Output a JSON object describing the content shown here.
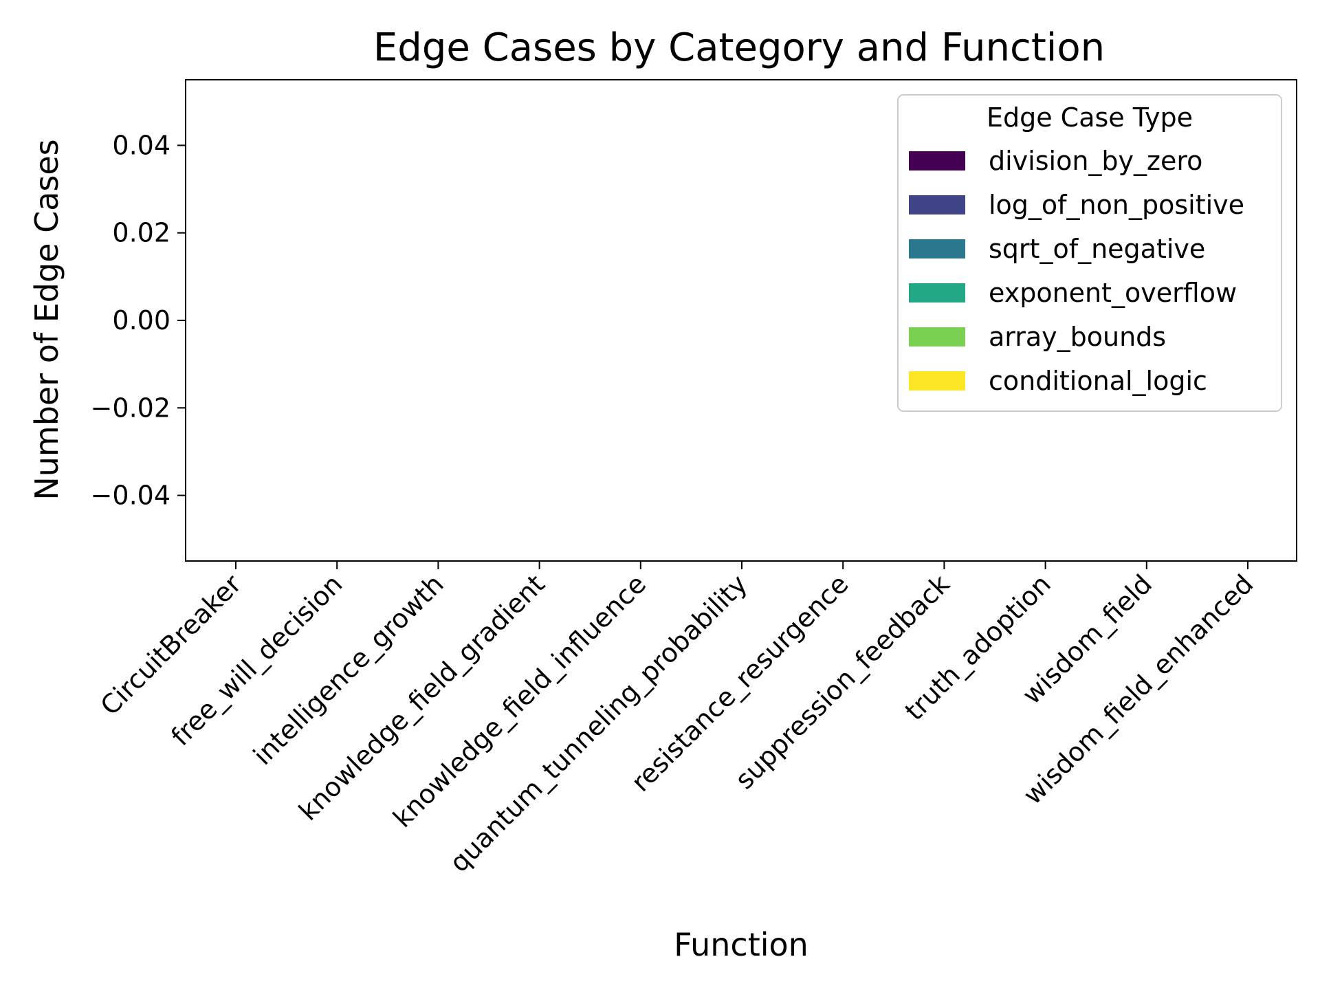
{
  "chart_data": {
    "type": "bar",
    "stacked": true,
    "title": "Edge Cases by Category and Function",
    "xlabel": "Function",
    "ylabel": "Number of Edge Cases",
    "ylim": [
      -0.055,
      0.055
    ],
    "yticks": [
      "0.04",
      "0.02",
      "0.00",
      "−0.02",
      "−0.04"
    ],
    "ytick_values": [
      0.04,
      0.02,
      0.0,
      -0.02,
      -0.04
    ],
    "categories": [
      "CircuitBreaker",
      "free_will_decision",
      "intelligence_growth",
      "knowledge_field_gradient",
      "knowledge_field_influence",
      "quantum_tunneling_probability",
      "resistance_resurgence",
      "suppression_feedback",
      "truth_adoption",
      "wisdom_field",
      "wisdom_field_enhanced"
    ],
    "legend": {
      "title": "Edge Case Type",
      "placement": "top-right"
    },
    "series": [
      {
        "name": "division_by_zero",
        "color": "#440154",
        "values": [
          0,
          0,
          0,
          0,
          0,
          0,
          0,
          0,
          0,
          0,
          0
        ]
      },
      {
        "name": "log_of_non_positive",
        "color": "#414487",
        "values": [
          0,
          0,
          0,
          0,
          0,
          0,
          0,
          0,
          0,
          0,
          0
        ]
      },
      {
        "name": "sqrt_of_negative",
        "color": "#2a788e",
        "values": [
          0,
          0,
          0,
          0,
          0,
          0,
          0,
          0,
          0,
          0,
          0
        ]
      },
      {
        "name": "exponent_overflow",
        "color": "#22a884",
        "values": [
          0,
          0,
          0,
          0,
          0,
          0,
          0,
          0,
          0,
          0,
          0
        ]
      },
      {
        "name": "array_bounds",
        "color": "#7ad151",
        "values": [
          0,
          0,
          0,
          0,
          0,
          0,
          0,
          0,
          0,
          0,
          0
        ]
      },
      {
        "name": "conditional_logic",
        "color": "#fde725",
        "values": [
          0,
          0,
          0,
          0,
          0,
          0,
          0,
          0,
          0,
          0,
          0
        ]
      }
    ]
  }
}
